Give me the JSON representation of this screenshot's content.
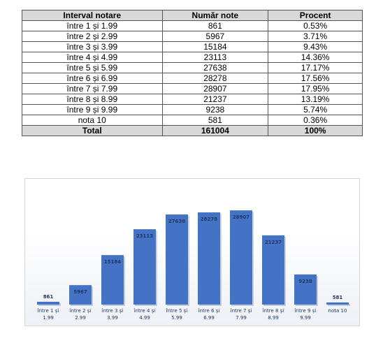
{
  "table": {
    "headers": [
      "Interval notare",
      "Număr note",
      "Procent"
    ],
    "rows": [
      [
        "între 1 și 1.99",
        "861",
        "0.53%"
      ],
      [
        "între 2 și 2.99",
        "5967",
        "3.71%"
      ],
      [
        "între 3 și 3.99",
        "15184",
        "9.43%"
      ],
      [
        "între 4 și 4.99",
        "23113",
        "14.36%"
      ],
      [
        "între 5 și 5.99",
        "27638",
        "17.17%"
      ],
      [
        "între 6 și 6.99",
        "28278",
        "17.56%"
      ],
      [
        "între 7 și 7.99",
        "28907",
        "17.95%"
      ],
      [
        "între 8 și 8.99",
        "21237",
        "13.19%"
      ],
      [
        "între 9 și 9.99",
        "9238",
        "5.74%"
      ],
      [
        "nota 10",
        "581",
        "0.36%"
      ]
    ],
    "total": [
      "Total",
      "161004",
      "100%"
    ]
  },
  "chart_data": {
    "type": "bar",
    "title": "",
    "xlabel": "",
    "ylabel": "",
    "categories": [
      [
        "între 1 și",
        "1.99"
      ],
      [
        "între 2 și",
        "2.99"
      ],
      [
        "între 3 și",
        "3.99"
      ],
      [
        "între 4 și",
        "4.99"
      ],
      [
        "între 5 și",
        "5.99"
      ],
      [
        "între 6 și",
        "6.99"
      ],
      [
        "între 7 și",
        "7.99"
      ],
      [
        "între 8 și",
        "8.99"
      ],
      [
        "între 9 și",
        "9.99"
      ],
      [
        "nota 10"
      ]
    ],
    "values": [
      861,
      5967,
      15184,
      23113,
      27638,
      28278,
      28907,
      21237,
      9238,
      581
    ],
    "ylim": [
      0,
      30000
    ],
    "grid": false,
    "legend": "none",
    "bar_color": "#4472c4",
    "label_color": "#1f3864"
  }
}
